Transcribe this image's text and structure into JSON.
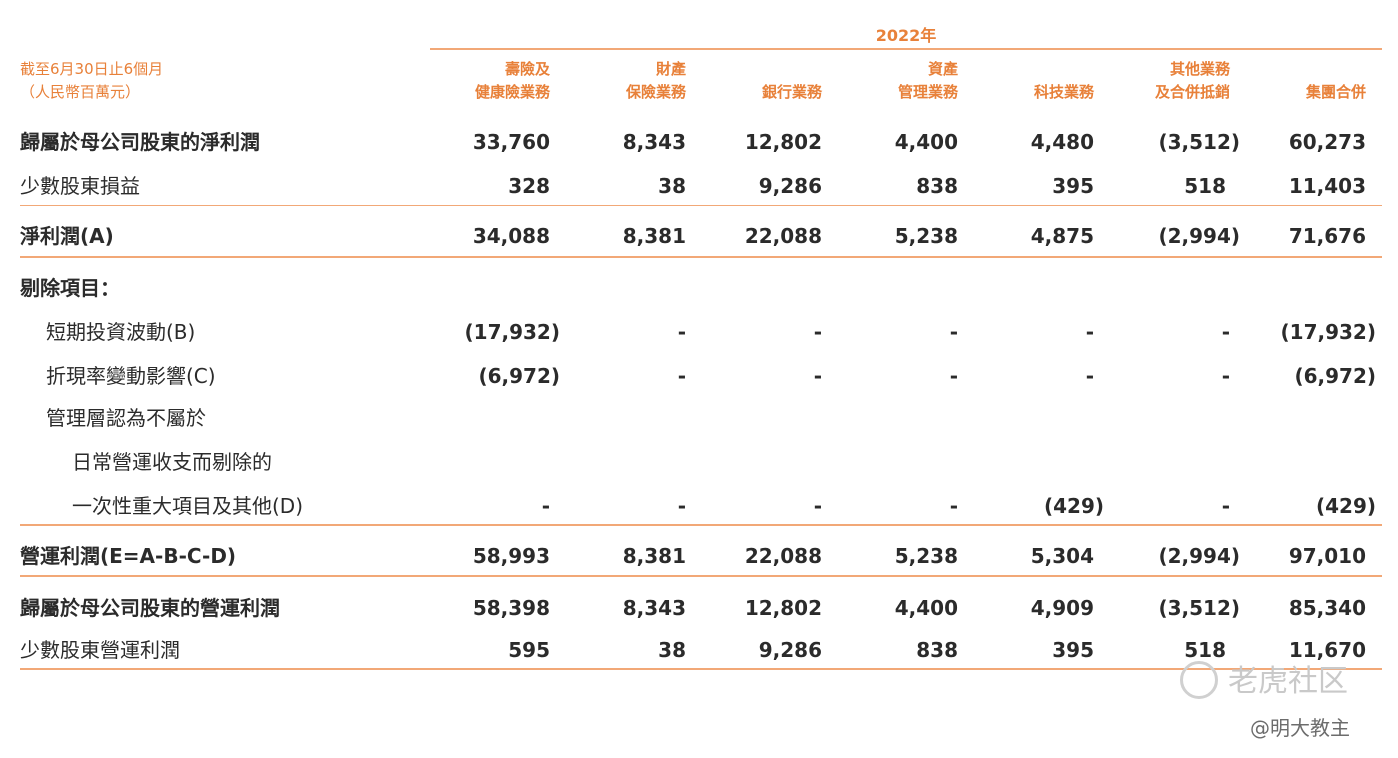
{
  "header": {
    "year": "2022年",
    "period_line1": "截至6月30日止6個月",
    "period_line2": "（人民幣百萬元）",
    "columns": [
      {
        "line1": "壽險及",
        "line2": "健康險業務"
      },
      {
        "line1": "財產",
        "line2": "保險業務"
      },
      {
        "line1": "",
        "line2": "銀行業務"
      },
      {
        "line1": "資產",
        "line2": "管理業務"
      },
      {
        "line1": "",
        "line2": "科技業務"
      },
      {
        "line1": "其他業務",
        "line2": "及合併抵銷"
      },
      {
        "line1": "",
        "line2": "集團合併"
      }
    ]
  },
  "rows": [
    {
      "label": "歸屬於母公司股東的淨利潤",
      "values": [
        "33,760",
        "8,343",
        "12,802",
        "4,400",
        "4,480",
        "(3,512)",
        "60,273"
      ]
    },
    {
      "label": "少數股東損益",
      "values": [
        "328",
        "38",
        "9,286",
        "838",
        "395",
        "518",
        "11,403"
      ]
    },
    {
      "label": "淨利潤(A)",
      "values": [
        "34,088",
        "8,381",
        "22,088",
        "5,238",
        "4,875",
        "(2,994)",
        "71,676"
      ]
    },
    {
      "label": "剔除項目：",
      "values": [
        "",
        "",
        "",
        "",
        "",
        "",
        ""
      ]
    },
    {
      "label": "短期投資波動(B)",
      "values": [
        "(17,932)",
        "-",
        "-",
        "-",
        "-",
        "-",
        "(17,932)"
      ]
    },
    {
      "label": "折現率變動影響(C)",
      "values": [
        "(6,972)",
        "-",
        "-",
        "-",
        "-",
        "-",
        "(6,972)"
      ]
    },
    {
      "label": "管理層認為不屬於",
      "values": [
        "",
        "",
        "",
        "",
        "",
        "",
        ""
      ]
    },
    {
      "label": "日常營運收支而剔除的",
      "values": [
        "",
        "",
        "",
        "",
        "",
        "",
        ""
      ]
    },
    {
      "label": "一次性重大項目及其他(D)",
      "values": [
        "-",
        "-",
        "-",
        "-",
        "(429)",
        "-",
        "(429)"
      ]
    },
    {
      "label": "營運利潤(E=A-B-C-D)",
      "values": [
        "58,993",
        "8,381",
        "22,088",
        "5,238",
        "5,304",
        "(2,994)",
        "97,010"
      ]
    },
    {
      "label": "歸屬於母公司股東的營運利潤",
      "values": [
        "58,398",
        "8,343",
        "12,802",
        "4,400",
        "4,909",
        "(3,512)",
        "85,340"
      ]
    },
    {
      "label": "少數股東營運利潤",
      "values": [
        "595",
        "38",
        "9,286",
        "838",
        "395",
        "518",
        "11,670"
      ]
    }
  ],
  "watermark": {
    "brand": "老虎社区",
    "author": "@明大教主"
  }
}
